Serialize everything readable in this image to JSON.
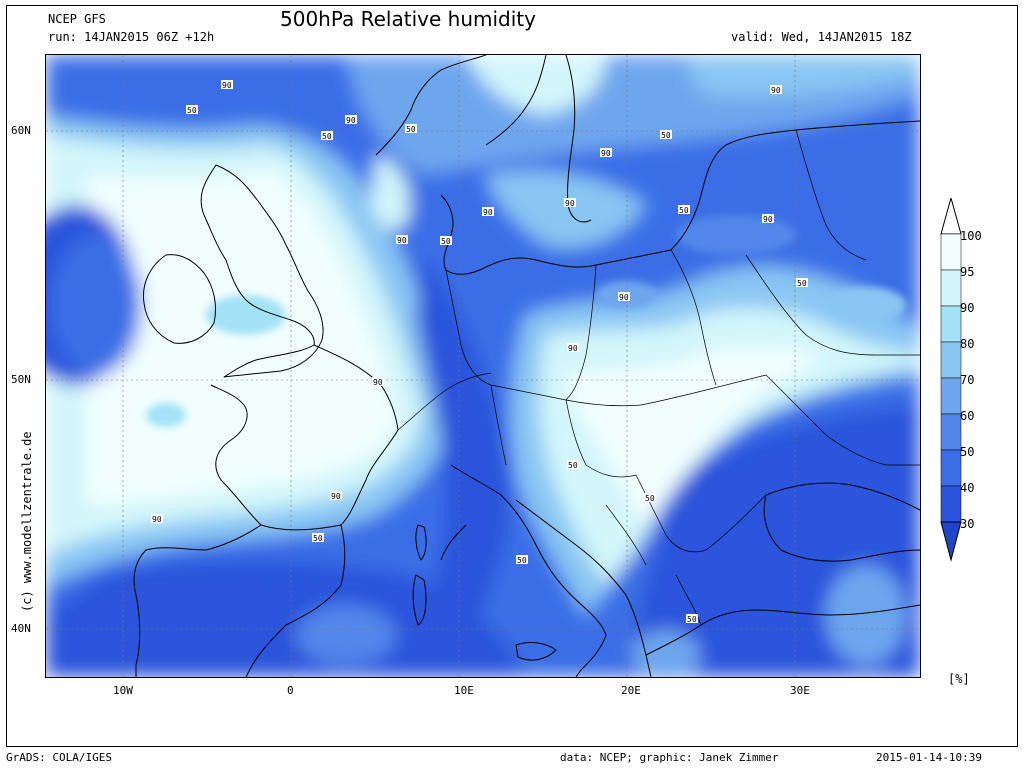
{
  "header": {
    "model": "NCEP GFS",
    "run": "run: 14JAN2015 06Z +12h",
    "title": "500hPa Relative humidity",
    "valid": "valid: Wed, 14JAN2015 18Z"
  },
  "axes": {
    "y_ticks": [
      "60N",
      "50N",
      "40N"
    ],
    "x_ticks": [
      "10W",
      "0",
      "10E",
      "20E",
      "30E"
    ]
  },
  "side_text": "(c) www.modellzentrale.de",
  "legend": {
    "unit": "[%]",
    "levels": [
      "100",
      "95",
      "90",
      "80",
      "70",
      "60",
      "50",
      "40",
      "30"
    ],
    "colors": [
      "#f2fefe",
      "#d2f6fa",
      "#a3e2f7",
      "#8ac6f3",
      "#6ea6ee",
      "#5287ea",
      "#3a6ee6",
      "#2a55dc"
    ]
  },
  "contour_labels": [
    "90",
    "50",
    "90",
    "50",
    "50",
    "90",
    "90",
    "50",
    "90",
    "90",
    "50",
    "90",
    "50",
    "50",
    "90",
    "90",
    "90",
    "50",
    "90",
    "50",
    "50",
    "50",
    "90",
    "90",
    "50",
    "50"
  ],
  "footer": {
    "left": "GrADS: COLA/IGES",
    "center": "data: NCEP; graphic: Janek Zimmer",
    "right": "2015-01-14-10:39"
  }
}
